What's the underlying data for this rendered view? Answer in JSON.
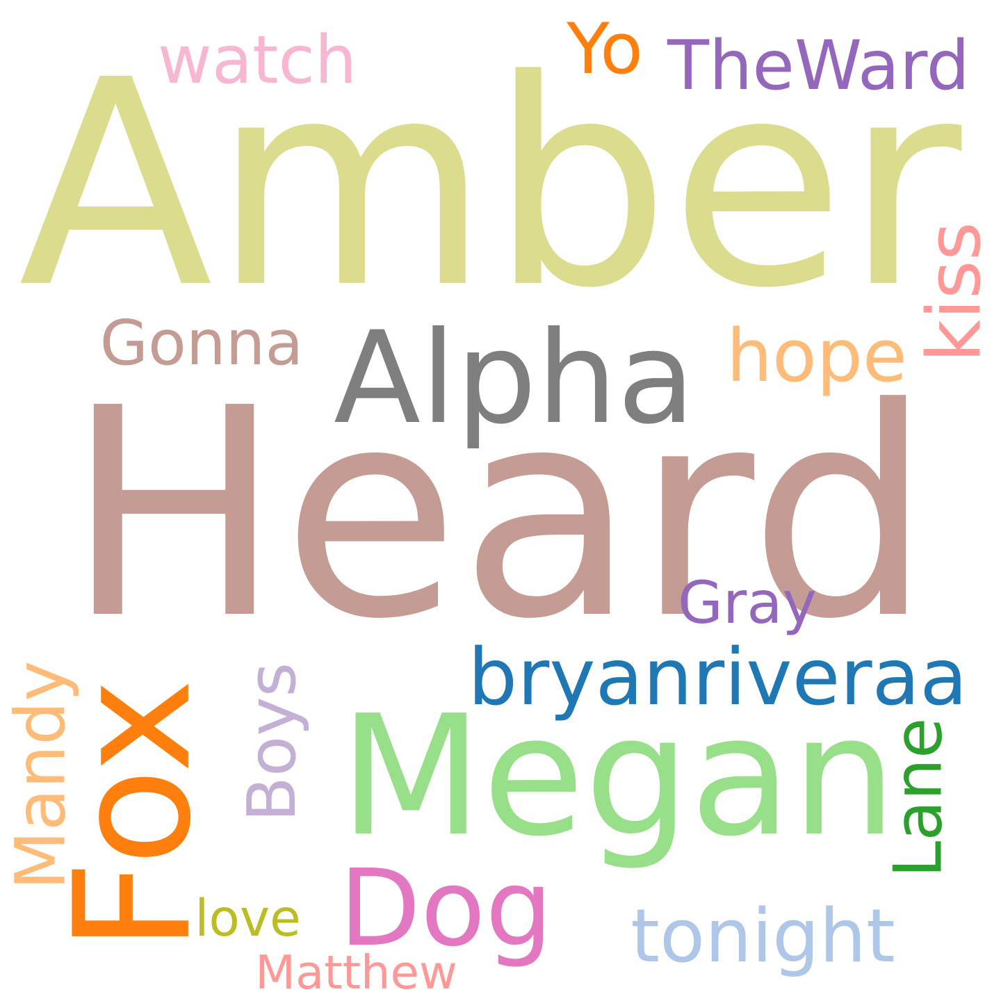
{
  "words": [
    {
      "text": "Amber",
      "color": "#dbdc8d",
      "rotated": false
    },
    {
      "text": "Heard",
      "color": "#c49c94",
      "rotated": false
    },
    {
      "text": "Megan",
      "color": "#98df8a",
      "rotated": false
    },
    {
      "text": "Fox",
      "color": "#ff7f0e",
      "rotated": true
    },
    {
      "text": "Alpha",
      "color": "#7f7f7f",
      "rotated": false
    },
    {
      "text": "Dog",
      "color": "#e377c2",
      "rotated": false
    },
    {
      "text": "bryanriveraa",
      "color": "#1f77b4",
      "rotated": false
    },
    {
      "text": "TheWard",
      "color": "#9467bd",
      "rotated": false
    },
    {
      "text": "Gonna",
      "color": "#c49c94",
      "rotated": false
    },
    {
      "text": "hope",
      "color": "#ffbb78",
      "rotated": false
    },
    {
      "text": "kiss",
      "color": "#ff9896",
      "rotated": true
    },
    {
      "text": "watch",
      "color": "#f7b6d2",
      "rotated": false
    },
    {
      "text": "Yo",
      "color": "#ff7f0e",
      "rotated": false
    },
    {
      "text": "Gray",
      "color": "#9467bd",
      "rotated": false
    },
    {
      "text": "Boys",
      "color": "#c5b0d5",
      "rotated": true
    },
    {
      "text": "Mandy",
      "color": "#ffbb78",
      "rotated": true
    },
    {
      "text": "Lane",
      "color": "#2ca02c",
      "rotated": true
    },
    {
      "text": "love",
      "color": "#bcbd22",
      "rotated": false
    },
    {
      "text": "tonight",
      "color": "#aec7e8",
      "rotated": false
    },
    {
      "text": "Matthew",
      "color": "#ff9896",
      "rotated": false
    }
  ]
}
